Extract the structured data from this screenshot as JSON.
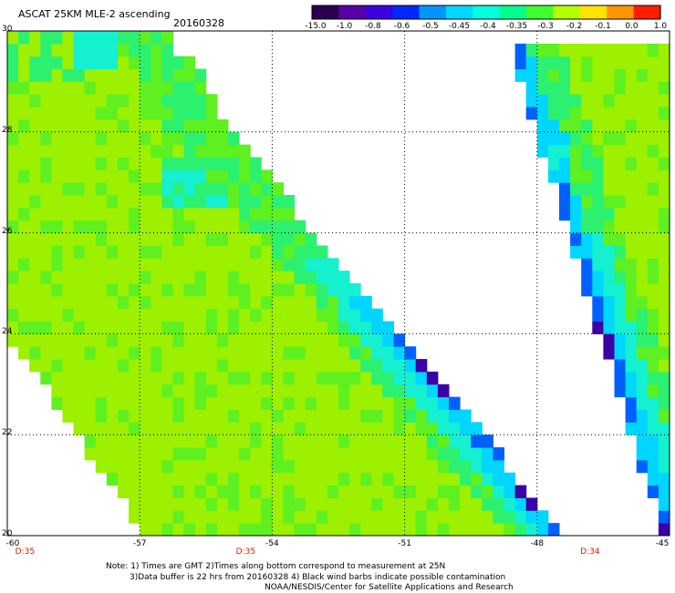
{
  "header": {
    "title": "ASCAT 25KM MLE-2 ascending",
    "date": "20160328"
  },
  "colorbar": {
    "ticks": [
      "-15.0",
      "-1.0",
      "-0.8",
      "-0.6",
      "-0.5",
      "-0.45",
      "-0.4",
      "-0.35",
      "-0.3",
      "-0.2",
      "-0.1",
      "0.0",
      "1.0"
    ],
    "colors": [
      "#2a0050",
      "#5a00a8",
      "#3c00e0",
      "#0028ff",
      "#0096ff",
      "#00d8ff",
      "#00ffe0",
      "#00ff8c",
      "#40ff30",
      "#b4ff00",
      "#ffe400",
      "#ff9600",
      "#ff1e00"
    ]
  },
  "map": {
    "lat_labels": [
      "30",
      "28",
      "26",
      "24",
      "22",
      "20"
    ],
    "lon_labels": [
      "-60",
      "-57",
      "-54",
      "-51",
      "-48",
      "-45"
    ],
    "time_labels": [
      "D:35",
      "D:35",
      "D:34"
    ],
    "swath_colors": {
      "base": "#9cf000",
      "green": "#5ef020",
      "mid": "#2cf070",
      "cyan": "#14f0d0",
      "lightblue": "#00d6ff",
      "blue": "#0060ff",
      "purple": "#3c00a8"
    }
  },
  "footer": {
    "line1": "Note: 1) Times are GMT 2)Times along bottom correspond to measurement at 25N",
    "line2": "3)Data buffer is 22 hrs from 20160328 4) Black wind barbs indicate possible contamination",
    "line3": "NOAA/NESDIS/Center for Satellite Applications and Research"
  }
}
